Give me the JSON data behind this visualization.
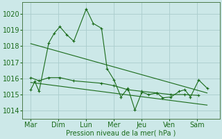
{
  "background_color": "#cce8e8",
  "grid_color": "#aacccc",
  "line_color": "#1a6b1a",
  "xlabel": "Pression niveau de la mer( hPa )",
  "xlabel_fontsize": 7,
  "tick_fontsize": 7,
  "ylim": [
    1013.5,
    1020.7
  ],
  "yticks": [
    1014,
    1015,
    1016,
    1017,
    1018,
    1019,
    1020
  ],
  "x_labels": [
    "Mar",
    "Dim",
    "Lun",
    "Mer",
    "Jeu",
    "Ven",
    "Sam"
  ],
  "x_positions": [
    0,
    1,
    2,
    3,
    4,
    5,
    6
  ],
  "xlim": [
    -0.3,
    6.8
  ],
  "series1_x": [
    0.0,
    0.15,
    0.3,
    0.65,
    0.85,
    1.05,
    1.3,
    1.55,
    2.0,
    2.25,
    2.55,
    2.75,
    3.0,
    3.25,
    3.5,
    3.75,
    4.0,
    4.25,
    4.55,
    4.75,
    5.05,
    5.35,
    5.55,
    5.75,
    6.05,
    6.35
  ],
  "series1_y": [
    1015.3,
    1015.8,
    1015.2,
    1018.2,
    1018.8,
    1019.2,
    1018.7,
    1018.3,
    1020.3,
    1019.4,
    1019.1,
    1016.6,
    1015.9,
    1014.85,
    1015.4,
    1014.05,
    1015.15,
    1015.0,
    1015.1,
    1014.8,
    1014.85,
    1015.2,
    1015.3,
    1014.85,
    1015.9,
    1015.4
  ],
  "series2_x": [
    0.0,
    0.3,
    0.65,
    1.05,
    1.55,
    2.55,
    3.0,
    3.5,
    4.0,
    4.55,
    5.05,
    5.55,
    6.05
  ],
  "series2_y": [
    1016.05,
    1015.85,
    1016.05,
    1016.05,
    1015.85,
    1015.7,
    1015.55,
    1015.3,
    1015.2,
    1015.1,
    1015.0,
    1015.0,
    1014.95
  ],
  "trend1_x": [
    0.0,
    6.35
  ],
  "trend1_y": [
    1018.15,
    1015.1
  ],
  "trend2_x": [
    0.0,
    6.35
  ],
  "trend2_y": [
    1015.75,
    1014.35
  ]
}
